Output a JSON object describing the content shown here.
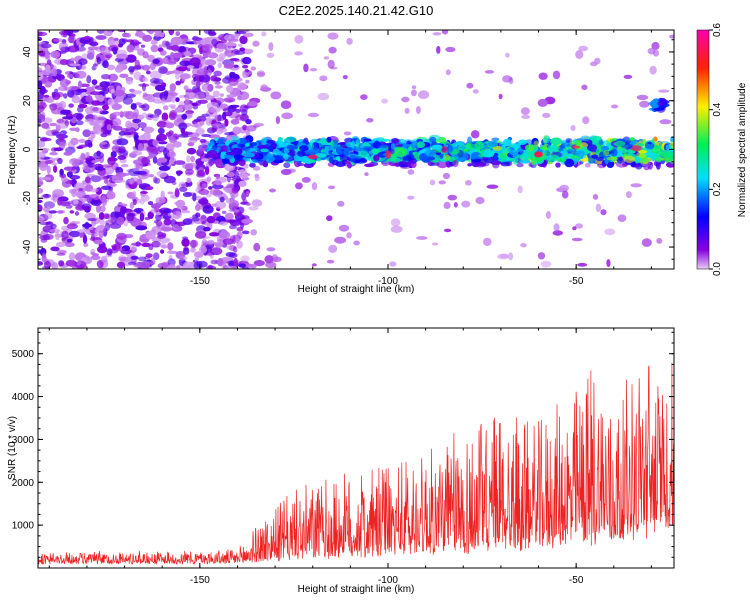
{
  "title": "C2E2.2025.140.21.42.G10",
  "chart_data": [
    {
      "type": "heatmap",
      "xlabel": "Height of straight line (km)",
      "ylabel": "Frequency (Hz)",
      "xlim": [
        -193,
        -24
      ],
      "ylim": [
        -49,
        49
      ],
      "x_ticks": [
        -150,
        -100,
        -50
      ],
      "y_ticks": [
        -40,
        -20,
        0,
        20,
        40
      ],
      "colorbar": {
        "label": "Normalized spectral amplitude",
        "range": [
          0.0,
          0.6
        ],
        "ticks": [
          0.0,
          0.2,
          0.4,
          0.6
        ],
        "colormap": "rainbow (magenta-blue-cyan-green-yellow-red-magenta)"
      },
      "description": {
        "noise_region_x": [
          -193,
          -137
        ],
        "signal_band_center_hz": 0,
        "signal_band_halfwidth_hz": 6,
        "signal_onset_km": -147,
        "extra_feature": {
          "x": -28,
          "y": 18
        }
      }
    },
    {
      "type": "line",
      "xlabel": "Height of straight line (km)",
      "ylabel": "SNR (10 * v/v)",
      "xlim": [
        -193,
        -24
      ],
      "ylim": [
        0,
        5600
      ],
      "x_ticks": [
        -150,
        -100,
        -50
      ],
      "y_ticks": [
        1000,
        2000,
        3000,
        4000,
        5000
      ],
      "series_color": "#ee2222",
      "envelope": {
        "x": [
          -193,
          -160,
          -140,
          -133,
          -125,
          -115,
          -100,
          -90,
          -75,
          -70,
          -60,
          -50,
          -45,
          -40,
          -35,
          -30,
          -26,
          -24
        ],
        "base": [
          120,
          120,
          120,
          180,
          250,
          300,
          350,
          420,
          420,
          500,
          600,
          650,
          700,
          750,
          900,
          1000,
          1100,
          1100
        ],
        "peak": [
          350,
          400,
          420,
          1250,
          1800,
          2100,
          2400,
          2800,
          3500,
          3800,
          3300,
          4200,
          5050,
          3800,
          4500,
          5200,
          4000,
          5500
        ]
      }
    }
  ]
}
